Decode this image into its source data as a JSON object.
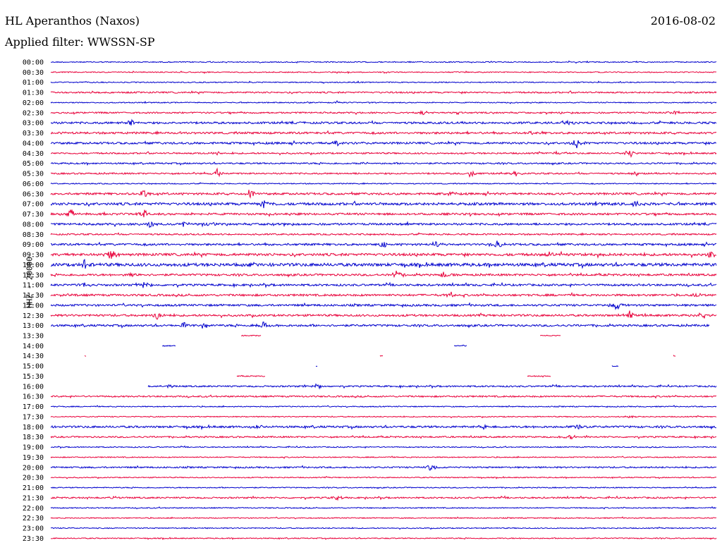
{
  "header": {
    "station": "HL Aperanthos (Naxos)",
    "filter": "Applied filter: WWSSN-SP",
    "date": "2016-08-02"
  },
  "chart_data": {
    "type": "line",
    "title": "HL Aperanthos (Naxos)",
    "subtitle": "Applied filter: WWSSN-SP",
    "ylabel": "HHZ - 20000",
    "xlabel": "",
    "colors": {
      "even": "#0000cc",
      "odd": "#e8003a"
    },
    "rows": [
      {
        "label": "00:00",
        "amp": 1,
        "events": [],
        "gaps": []
      },
      {
        "label": "00:30",
        "amp": 1,
        "events": [],
        "gaps": []
      },
      {
        "label": "01:00",
        "amp": 1,
        "events": [],
        "gaps": []
      },
      {
        "label": "01:30",
        "amp": 1.5,
        "events": [],
        "gaps": []
      },
      {
        "label": "02:00",
        "amp": 1,
        "events": [
          [
            0.43,
            2
          ]
        ],
        "gaps": []
      },
      {
        "label": "02:30",
        "amp": 1.5,
        "events": [
          [
            0.56,
            3
          ],
          [
            0.94,
            4
          ]
        ],
        "gaps": []
      },
      {
        "label": "03:00",
        "amp": 2,
        "events": [
          [
            0.12,
            6
          ],
          [
            0.78,
            3
          ]
        ],
        "gaps": []
      },
      {
        "label": "03:30",
        "amp": 2,
        "events": [
          [
            0.2,
            2
          ],
          [
            0.72,
            2
          ]
        ],
        "gaps": []
      },
      {
        "label": "04:00",
        "amp": 2,
        "events": [
          [
            0.43,
            5
          ],
          [
            0.79,
            8
          ]
        ],
        "gaps": []
      },
      {
        "label": "04:30",
        "amp": 1.5,
        "events": [
          [
            0.25,
            3
          ],
          [
            0.76,
            3
          ],
          [
            0.87,
            6
          ]
        ],
        "gaps": []
      },
      {
        "label": "05:00",
        "amp": 1.5,
        "events": [
          [
            0.47,
            2
          ]
        ],
        "gaps": []
      },
      {
        "label": "05:30",
        "amp": 1.5,
        "events": [
          [
            0.25,
            6
          ],
          [
            0.63,
            6
          ],
          [
            0.7,
            4
          ],
          [
            0.88,
            3
          ]
        ],
        "gaps": []
      },
      {
        "label": "06:00",
        "amp": 1,
        "events": [],
        "gaps": []
      },
      {
        "label": "06:30",
        "amp": 2,
        "events": [
          [
            0.14,
            7
          ],
          [
            0.3,
            9
          ],
          [
            0.6,
            3
          ]
        ],
        "gaps": []
      },
      {
        "label": "07:00",
        "amp": 2.5,
        "events": [
          [
            0.32,
            9
          ],
          [
            0.88,
            5
          ]
        ],
        "gaps": []
      },
      {
        "label": "07:30",
        "amp": 2,
        "events": [
          [
            0.03,
            7
          ],
          [
            0.14,
            6
          ]
        ],
        "gaps": []
      },
      {
        "label": "08:00",
        "amp": 2,
        "events": [
          [
            0.15,
            5
          ],
          [
            0.2,
            4
          ],
          [
            0.24,
            5
          ],
          [
            0.34,
            3
          ]
        ],
        "gaps": []
      },
      {
        "label": "08:30",
        "amp": 1.5,
        "events": [],
        "gaps": []
      },
      {
        "label": "09:00",
        "amp": 2,
        "events": [
          [
            0.5,
            6
          ],
          [
            0.58,
            5
          ],
          [
            0.67,
            8
          ]
        ],
        "gaps": []
      },
      {
        "label": "09:30",
        "amp": 2.5,
        "events": [
          [
            0.09,
            10
          ],
          [
            0.75,
            4
          ],
          [
            0.82,
            4
          ],
          [
            0.99,
            5
          ]
        ],
        "gaps": []
      },
      {
        "label": "10:00",
        "amp": 3,
        "events": [
          [
            0.05,
            8
          ],
          [
            0.3,
            3
          ]
        ],
        "gaps": []
      },
      {
        "label": "10:30",
        "amp": 2,
        "events": [
          [
            0.12,
            4
          ],
          [
            0.52,
            7
          ],
          [
            0.59,
            6
          ]
        ],
        "gaps": []
      },
      {
        "label": "11:00",
        "amp": 2,
        "events": [
          [
            0.05,
            4
          ],
          [
            0.14,
            6
          ]
        ],
        "gaps": []
      },
      {
        "label": "11:30",
        "amp": 2,
        "events": [
          [
            0.02,
            3
          ],
          [
            0.6,
            5
          ],
          [
            0.97,
            4
          ]
        ],
        "gaps": []
      },
      {
        "label": "12:00",
        "amp": 2,
        "events": [
          [
            0.85,
            7
          ]
        ],
        "gaps": []
      },
      {
        "label": "12:30",
        "amp": 2,
        "events": [
          [
            0.16,
            7
          ],
          [
            0.87,
            6
          ],
          [
            0.98,
            5
          ]
        ],
        "gaps": []
      },
      {
        "label": "13:00",
        "amp": 2,
        "events": [
          [
            0.2,
            5
          ],
          [
            0.23,
            5
          ],
          [
            0.32,
            7
          ]
        ],
        "gaps": [
          [
            0.99,
            1
          ]
        ]
      },
      {
        "label": "13:30",
        "amp": 1,
        "events": [],
        "gaps": [
          [
            0,
            0.286
          ],
          [
            0.316,
            0.735
          ],
          [
            0.766,
            1
          ]
        ]
      },
      {
        "label": "14:00",
        "amp": 1,
        "events": [],
        "gaps": [
          [
            0,
            0.167
          ],
          [
            0.188,
            0.605
          ],
          [
            0.626,
            1
          ]
        ]
      },
      {
        "label": "14:30",
        "amp": 1,
        "events": [],
        "gaps": [
          [
            0,
            0.05
          ],
          [
            0.054,
            0.494
          ],
          [
            0.499,
            0.935
          ],
          [
            0.939,
            1
          ]
        ]
      },
      {
        "label": "15:00",
        "amp": 1,
        "events": [],
        "gaps": [
          [
            0,
            0.398
          ],
          [
            0.401,
            0.843
          ],
          [
            0.853,
            1
          ]
        ]
      },
      {
        "label": "15:30",
        "amp": 1,
        "events": [],
        "gaps": [
          [
            0,
            0.279
          ],
          [
            0.323,
            0.716
          ],
          [
            0.752,
            1
          ]
        ]
      },
      {
        "label": "16:00",
        "amp": 1.5,
        "events": [
          [
            0.18,
            5
          ],
          [
            0.4,
            4
          ]
        ],
        "gaps": [
          [
            0,
            0.146
          ]
        ]
      },
      {
        "label": "16:30",
        "amp": 1.5,
        "events": [],
        "gaps": []
      },
      {
        "label": "17:00",
        "amp": 1,
        "events": [],
        "gaps": []
      },
      {
        "label": "17:30",
        "amp": 1,
        "events": [
          [
            0.87,
            3
          ]
        ],
        "gaps": []
      },
      {
        "label": "18:00",
        "amp": 2,
        "events": [
          [
            0.31,
            4
          ],
          [
            0.65,
            4
          ],
          [
            0.79,
            5
          ]
        ],
        "gaps": []
      },
      {
        "label": "18:30",
        "amp": 1.5,
        "events": [
          [
            0.78,
            5
          ]
        ],
        "gaps": []
      },
      {
        "label": "19:00",
        "amp": 1,
        "events": [],
        "gaps": []
      },
      {
        "label": "19:30",
        "amp": 1,
        "events": [],
        "gaps": []
      },
      {
        "label": "20:00",
        "amp": 1.5,
        "events": [
          [
            0.57,
            6
          ]
        ],
        "gaps": []
      },
      {
        "label": "20:30",
        "amp": 1,
        "events": [],
        "gaps": []
      },
      {
        "label": "21:00",
        "amp": 1,
        "events": [],
        "gaps": []
      },
      {
        "label": "21:30",
        "amp": 1.5,
        "events": [
          [
            0.1,
            3
          ],
          [
            0.43,
            5
          ]
        ],
        "gaps": []
      },
      {
        "label": "22:00",
        "amp": 1,
        "events": [],
        "gaps": []
      },
      {
        "label": "22:30",
        "amp": 1,
        "events": [],
        "gaps": []
      },
      {
        "label": "23:00",
        "amp": 1,
        "events": [],
        "gaps": []
      },
      {
        "label": "23:30",
        "amp": 1,
        "events": [],
        "gaps": []
      }
    ]
  }
}
